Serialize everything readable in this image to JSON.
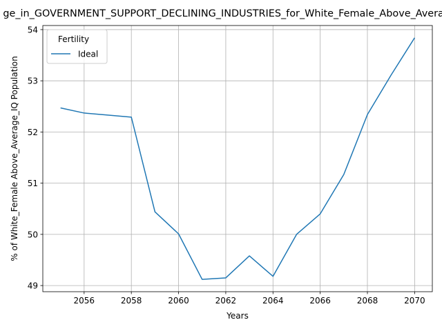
{
  "chart_data": {
    "type": "line",
    "title": "ge_in_GOVERNMENT_SUPPORT_DECLINING_INDUSTRIES_for_White_Female_Above_Average_IQ",
    "xlabel": "Years",
    "ylabel": "% of White_Female Above_Average_IQ Population",
    "xlim": [
      2054.25,
      2070.75
    ],
    "ylim": [
      48.88,
      54.08
    ],
    "x_ticks": [
      2056,
      2058,
      2060,
      2062,
      2064,
      2066,
      2068,
      2070
    ],
    "y_ticks": [
      49,
      50,
      51,
      52,
      53,
      54
    ],
    "grid": true,
    "legend": {
      "title": "Fertility",
      "placement": "top-left"
    },
    "series": [
      {
        "name": "Ideal",
        "color": "#1f77b4",
        "x": [
          2055,
          2056,
          2057,
          2058,
          2059,
          2060,
          2061,
          2062,
          2063,
          2064,
          2065,
          2066,
          2067,
          2068,
          2069,
          2070
        ],
        "y": [
          52.47,
          52.37,
          52.33,
          52.29,
          50.44,
          50.01,
          49.12,
          49.15,
          49.58,
          49.18,
          50.0,
          50.4,
          51.17,
          52.34,
          53.11,
          53.84
        ]
      }
    ]
  }
}
